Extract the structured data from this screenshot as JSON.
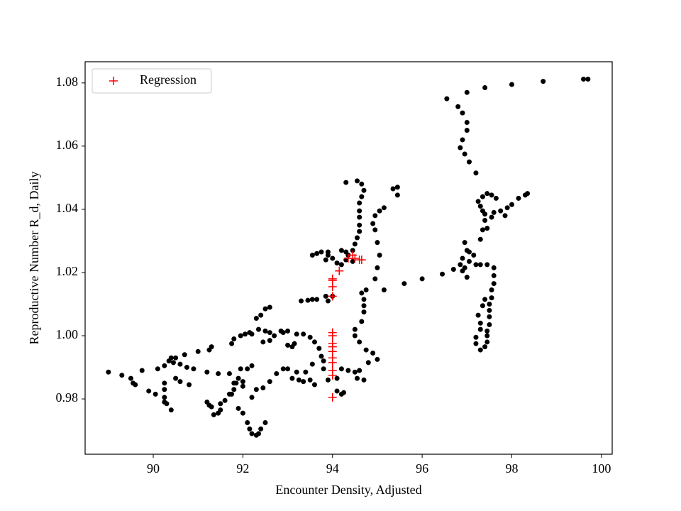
{
  "chart_data": {
    "type": "scatter",
    "xlabel": "Encounter Density, Adjusted",
    "ylabel": "Reproductive Number R_d, Daily",
    "xlim": [
      88.48,
      100.24
    ],
    "ylim": [
      0.9625,
      1.0867
    ],
    "xticks": [
      90,
      92,
      94,
      96,
      98,
      100
    ],
    "yticks": [
      0.98,
      {
        "value": 1,
        "label": "1.00"
      },
      1.02,
      1.04,
      1.06,
      1.08
    ],
    "grid": false,
    "legend": "upper left",
    "series": [
      {
        "color": "#000000",
        "marker": "dot",
        "x": [
          89.0,
          89.3,
          89.5,
          89.55,
          89.6,
          89.75,
          89.9,
          90.1,
          90.05,
          90.25,
          90.3,
          90.4,
          90.25,
          90.25,
          90.25,
          90.25,
          90.35,
          90.4,
          90.5,
          90.45,
          90.6,
          90.75,
          90.9,
          90.7,
          91.0,
          91.2,
          91.25,
          91.3,
          91.45,
          91.2,
          91.25,
          91.3,
          91.35,
          91.45,
          91.5,
          91.6,
          91.7,
          91.8,
          91.75,
          91.85,
          91.9,
          92.0,
          92.0,
          91.95,
          91.7,
          91.8,
          91.9,
          92.0,
          92.1,
          92.15,
          92.2,
          92.3,
          92.35,
          92.4,
          92.5,
          92.2,
          92.3,
          92.45,
          92.6,
          92.75,
          92.9,
          92.1,
          92.2,
          91.75,
          91.8,
          91.95,
          92.05,
          92.15,
          92.2,
          92.3,
          92.35,
          92.4,
          92.5,
          92.6,
          92.5,
          92.6,
          92.7,
          92.6,
          92.45,
          92.85,
          92.9,
          93.0,
          93.0,
          93.1,
          93.15,
          93.2,
          93.35,
          93.5,
          93.6,
          93.7,
          93.75,
          93.8,
          93.3,
          93.45,
          93.55,
          93.65,
          93.85,
          93.9,
          94.0,
          93.0,
          93.1,
          93.2,
          93.25,
          93.35,
          93.5,
          93.4,
          93.55,
          93.6,
          93.8,
          93.9,
          94.1,
          94.2,
          94.25,
          94.1,
          94.2,
          94.35,
          94.5,
          94.55,
          94.6,
          94.7,
          94.8,
          94.9,
          95.0,
          94.75,
          94.6,
          94.5,
          94.5,
          94.65,
          94.7,
          94.7,
          94.7,
          94.65,
          94.75,
          94.95,
          95.0,
          95.05,
          95.0,
          94.95,
          94.9,
          94.95,
          95.05,
          95.15,
          95.35,
          95.45,
          95.45,
          94.3,
          94.55,
          94.65,
          94.7,
          94.65,
          94.6,
          94.6,
          94.6,
          94.6,
          94.6,
          94.55,
          94.5,
          94.45,
          94.35,
          94.3,
          94.2,
          94.1,
          94.0,
          93.9,
          93.75,
          93.65,
          93.85,
          94.2,
          94.3,
          94.45,
          95.15,
          95.6,
          96.0,
          96.45,
          96.7,
          96.85,
          96.95,
          96.9,
          97.05,
          97.2,
          97.3,
          97.45,
          97.0,
          96.9,
          97.0,
          96.95,
          97.05,
          97.15,
          97.3,
          97.35,
          97.4,
          97.45,
          97.55,
          97.6,
          97.75,
          97.9,
          98.0,
          98.15,
          98.3,
          98.35,
          97.85,
          97.4,
          97.35,
          97.3,
          97.25,
          97.35,
          97.45,
          97.55,
          97.65,
          97.2,
          97.05,
          96.95,
          96.85,
          96.9,
          97.0,
          97.0,
          96.9,
          96.8,
          96.55,
          97.0,
          97.4,
          98.0,
          98.7,
          99.6,
          99.7,
          97.6,
          97.6,
          97.6,
          97.55,
          97.55,
          97.5,
          97.5,
          97.5,
          97.5,
          97.45,
          97.45,
          97.45,
          97.4,
          97.3,
          97.2,
          97.2,
          97.3,
          97.3,
          97.25,
          97.35,
          97.4,
          93.9,
          93.55,
          90.5,
          90.6,
          90.8,
          91.5
        ],
        "y": [
          0.9885,
          0.9875,
          0.9865,
          0.985,
          0.9845,
          0.989,
          0.9825,
          0.9895,
          0.9815,
          0.979,
          0.9785,
          0.9765,
          0.9805,
          0.983,
          0.985,
          0.9905,
          0.992,
          0.993,
          0.993,
          0.9915,
          0.991,
          0.99,
          0.9895,
          0.994,
          0.995,
          0.9885,
          0.9955,
          0.9965,
          0.988,
          0.979,
          0.978,
          0.9775,
          0.975,
          0.9755,
          0.9785,
          0.9795,
          0.9815,
          0.983,
          0.9815,
          0.985,
          0.9865,
          0.984,
          0.9855,
          0.9895,
          0.988,
          0.985,
          0.977,
          0.9755,
          0.9725,
          0.9705,
          0.969,
          0.9685,
          0.969,
          0.9705,
          0.9725,
          0.9805,
          0.983,
          0.9835,
          0.9855,
          0.988,
          0.9895,
          0.9895,
          0.9905,
          0.9975,
          0.999,
          1.0,
          1.0005,
          1.001,
          1.0005,
          1.0055,
          1.002,
          1.0065,
          1.0085,
          1.009,
          1.0015,
          1.001,
          1.0,
          0.9985,
          0.998,
          1.0015,
          1.001,
          1.0015,
          0.997,
          0.9965,
          0.9975,
          1.0005,
          1.0005,
          0.9995,
          0.998,
          0.996,
          0.9935,
          0.992,
          1.011,
          1.0112,
          1.0115,
          1.0115,
          1.0125,
          1.011,
          1.0125,
          0.9895,
          0.9865,
          0.9885,
          0.986,
          0.9855,
          0.986,
          0.9885,
          0.991,
          0.9845,
          0.9895,
          0.986,
          0.9825,
          0.9815,
          0.982,
          0.9865,
          0.9895,
          0.989,
          0.9885,
          0.9865,
          0.989,
          0.986,
          0.9915,
          0.9945,
          0.9925,
          0.9955,
          0.998,
          1.0,
          1.002,
          1.0045,
          1.0075,
          1.0095,
          1.0115,
          1.0135,
          1.0145,
          1.018,
          1.0215,
          1.0255,
          1.0295,
          1.0335,
          1.0355,
          1.038,
          1.0395,
          1.0405,
          1.0465,
          1.047,
          1.0445,
          1.0485,
          1.049,
          1.048,
          1.046,
          1.044,
          1.042,
          1.0395,
          1.0375,
          1.035,
          1.033,
          1.031,
          1.029,
          1.027,
          1.0255,
          1.024,
          1.0225,
          1.023,
          1.0245,
          1.0255,
          1.0265,
          1.026,
          1.024,
          1.027,
          1.0265,
          1.0235,
          1.0145,
          1.0165,
          1.018,
          1.0195,
          1.021,
          1.0225,
          1.0215,
          1.0245,
          1.0235,
          1.0225,
          1.0225,
          1.0225,
          1.0185,
          1.0205,
          1.027,
          1.0295,
          1.0265,
          1.0255,
          1.0305,
          1.0335,
          1.0365,
          1.034,
          1.0375,
          1.039,
          1.0395,
          1.0405,
          1.0415,
          1.0435,
          1.0445,
          1.045,
          1.038,
          1.0385,
          1.0395,
          1.041,
          1.0425,
          1.044,
          1.045,
          1.0445,
          1.0435,
          1.0515,
          1.055,
          1.0575,
          1.0595,
          1.062,
          1.065,
          1.0675,
          1.0705,
          1.0725,
          1.075,
          1.077,
          1.0785,
          1.0795,
          1.0805,
          1.0812,
          1.0812,
          1.0215,
          1.019,
          1.0165,
          1.0145,
          1.012,
          1.01,
          1.008,
          1.006,
          1.0035,
          1.0015,
          1.0,
          0.998,
          0.9965,
          0.9955,
          0.9975,
          0.9995,
          1.002,
          1.004,
          1.0065,
          1.0095,
          1.0115,
          1.0265,
          1.0255,
          0.9865,
          0.9855,
          0.9845,
          0.9765
        ]
      },
      {
        "name": "Regression",
        "color": "#ff0000",
        "marker": "plus",
        "x": [
          94,
          94,
          94,
          94,
          94,
          94,
          94,
          94,
          94,
          94,
          94,
          94,
          94,
          94,
          94.15,
          94.35,
          94.5,
          94.6,
          94.65,
          94.45
        ],
        "y": [
          0.9805,
          0.9875,
          0.989,
          0.9915,
          0.993,
          0.995,
          0.9965,
          0.9975,
          1.0,
          1.001,
          1.0125,
          1.0155,
          1.0175,
          1.018,
          1.0205,
          1.0245,
          1.0245,
          1.024,
          1.024,
          1.0255
        ]
      }
    ]
  }
}
